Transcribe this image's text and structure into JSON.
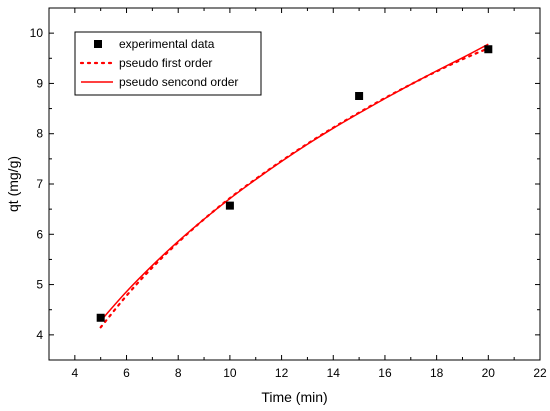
{
  "chart_data": {
    "type": "scatter",
    "xlabel": "Time (min)",
    "ylabel": "qt (mg/g)",
    "xlim": [
      3,
      22
    ],
    "ylim": [
      3.5,
      10.5
    ],
    "xticks": [
      4,
      6,
      8,
      10,
      12,
      14,
      16,
      18,
      20,
      22
    ],
    "yticks": [
      4,
      5,
      6,
      7,
      8,
      9,
      10
    ],
    "grid": false,
    "legend_position": "top-left",
    "series": [
      {
        "name": "experimental data",
        "kind": "scatter",
        "marker": "square",
        "color": "#000000",
        "points": [
          [
            5,
            4.34
          ],
          [
            10,
            6.57
          ],
          [
            15,
            8.75
          ],
          [
            20,
            9.68
          ]
        ]
      },
      {
        "name": "pseudo first order",
        "kind": "line",
        "style": "dotted",
        "color": "#ff0000",
        "points": [
          [
            5,
            4.15
          ],
          [
            6,
            4.78
          ],
          [
            7,
            5.34
          ],
          [
            8,
            5.84
          ],
          [
            9,
            6.3
          ],
          [
            10,
            6.72
          ],
          [
            11,
            7.1
          ],
          [
            12,
            7.46
          ],
          [
            13,
            7.8
          ],
          [
            14,
            8.12
          ],
          [
            15,
            8.42
          ],
          [
            16,
            8.71
          ],
          [
            17,
            8.98
          ],
          [
            18,
            9.24
          ],
          [
            19,
            9.48
          ],
          [
            20,
            9.7
          ]
        ]
      },
      {
        "name": "pseudo sencond order",
        "kind": "line",
        "style": "solid",
        "color": "#ff0000",
        "points": [
          [
            5,
            4.28
          ],
          [
            6,
            4.86
          ],
          [
            7,
            5.38
          ],
          [
            8,
            5.86
          ],
          [
            9,
            6.3
          ],
          [
            10,
            6.71
          ],
          [
            11,
            7.09
          ],
          [
            12,
            7.45
          ],
          [
            13,
            7.79
          ],
          [
            14,
            8.11
          ],
          [
            15,
            8.41
          ],
          [
            16,
            8.7
          ],
          [
            17,
            8.98
          ],
          [
            18,
            9.25
          ],
          [
            19,
            9.51
          ],
          [
            20,
            9.78
          ]
        ]
      }
    ]
  }
}
